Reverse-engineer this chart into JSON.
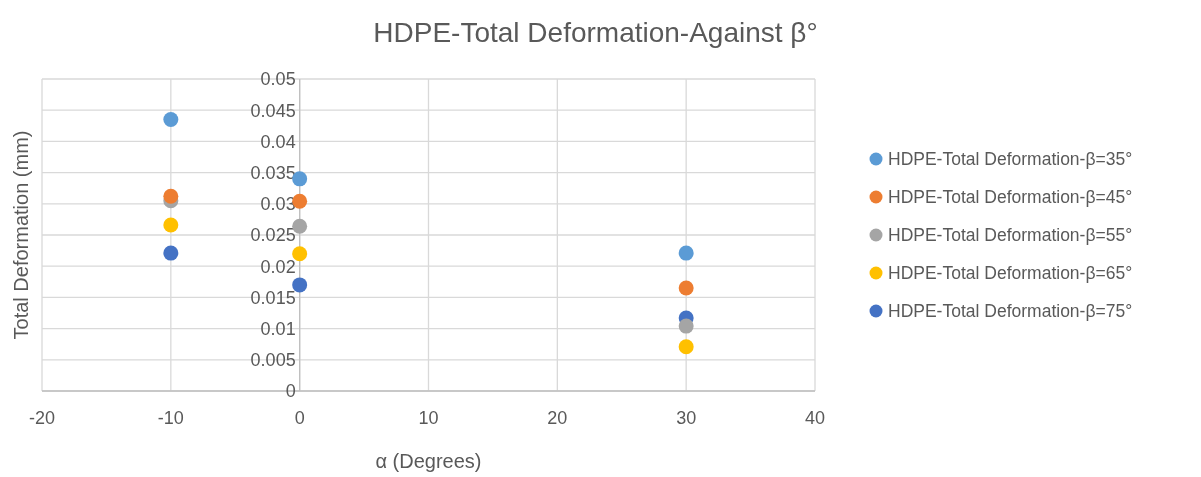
{
  "chart_data": {
    "type": "scatter",
    "title": "HDPE-Total Deformation-Against β°",
    "xlabel": "α (Degrees)",
    "ylabel": "Total Deformation (mm)",
    "x": [
      -10,
      0,
      30
    ],
    "series": [
      {
        "name": "HDPE-Total Deformation-β=35°",
        "color": "#5b9bd5",
        "values": [
          0.0435,
          0.034,
          0.0221
        ]
      },
      {
        "name": "HDPE-Total Deformation-β=45°",
        "color": "#ed7d31",
        "values": [
          0.0312,
          0.0304,
          0.0165
        ]
      },
      {
        "name": "HDPE-Total Deformation-β=55°",
        "color": "#a5a5a5",
        "values": [
          0.0305,
          0.0264,
          0.0104
        ]
      },
      {
        "name": "HDPE-Total Deformation-β=65°",
        "color": "#ffc000",
        "values": [
          0.0266,
          0.022,
          0.0071
        ]
      },
      {
        "name": "HDPE-Total Deformation-β=75°",
        "color": "#4472c4",
        "values": [
          0.0221,
          0.017,
          0.0117
        ]
      }
    ],
    "xlim": [
      -20,
      40
    ],
    "xticks": [
      -20,
      -10,
      0,
      10,
      20,
      30,
      40
    ],
    "ylim": [
      0,
      0.05
    ],
    "yticks": [
      0,
      0.005,
      0.01,
      0.015,
      0.02,
      0.025,
      0.03,
      0.035,
      0.04,
      0.045,
      0.05
    ],
    "grid": true,
    "legend": "right",
    "marker": "circle"
  }
}
